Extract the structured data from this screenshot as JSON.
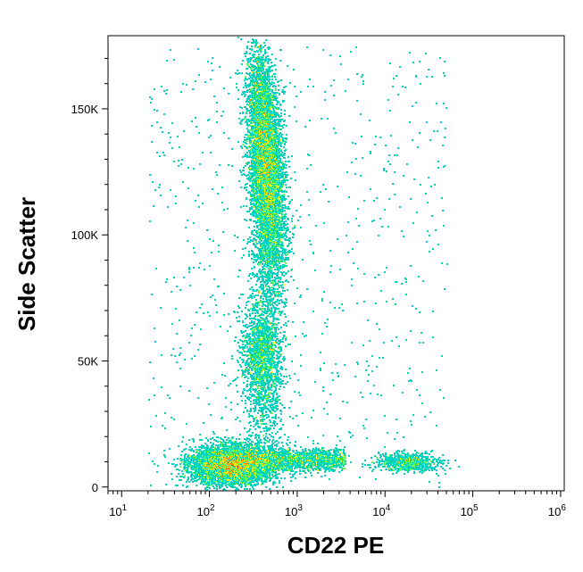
{
  "chart_data": {
    "type": "scatter",
    "subtype": "flow-cytometry-density-dot-plot",
    "title": "",
    "xlabel": "CD22 PE",
    "ylabel": "Side Scatter",
    "x_scale": "log",
    "xlim": [
      7,
      1100000
    ],
    "ylim": [
      -1500,
      179000
    ],
    "x_ticks": [
      {
        "value": 10,
        "base": "10",
        "exp": "1"
      },
      {
        "value": 100,
        "base": "10",
        "exp": "2"
      },
      {
        "value": 1000,
        "base": "10",
        "exp": "3"
      },
      {
        "value": 10000,
        "base": "10",
        "exp": "4"
      },
      {
        "value": 100000,
        "base": "10",
        "exp": "5"
      },
      {
        "value": 1000000,
        "base": "10",
        "exp": "6"
      }
    ],
    "y_ticks": [
      {
        "value": 0,
        "label": "0"
      },
      {
        "value": 50000,
        "label": "50K"
      },
      {
        "value": 100000,
        "label": "100K"
      },
      {
        "value": 150000,
        "label": "150K"
      }
    ],
    "color_scale": [
      "#0000ff",
      "#00a8ff",
      "#00ff80",
      "#ffff00",
      "#ff8000",
      "#ff0000"
    ],
    "populations": [
      {
        "name": "low-side-scatter-negative",
        "center_x": 180,
        "center_y": 9000,
        "count": 5000
      },
      {
        "name": "lymph-tail",
        "center_x": 900,
        "center_y": 11000,
        "count": 1500
      },
      {
        "name": "cd22-positive",
        "center_x": 18000,
        "center_y": 10000,
        "count": 700
      },
      {
        "name": "mid-side-scatter",
        "center_x": 380,
        "center_y": 52000,
        "count": 1400
      },
      {
        "name": "high-side-scatter",
        "center_x": 430,
        "center_y": 128000,
        "count": 7000
      },
      {
        "name": "scattered-events",
        "center_x": 2000,
        "center_y": 80000,
        "count": 800
      }
    ]
  }
}
